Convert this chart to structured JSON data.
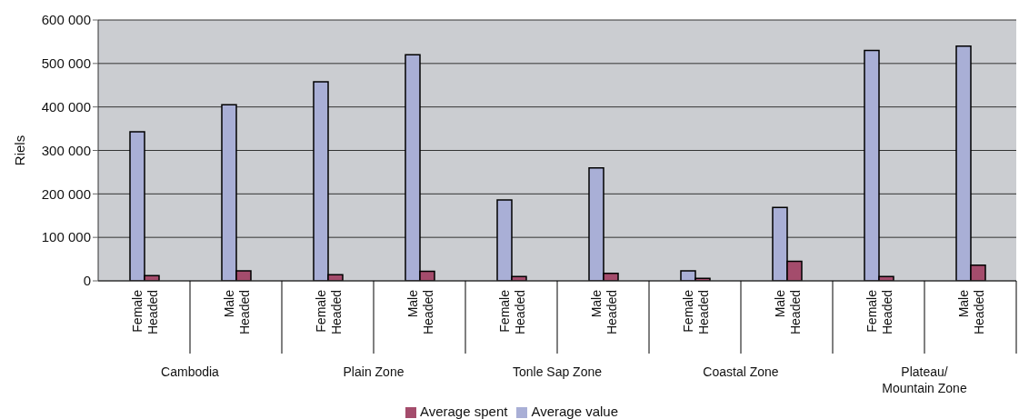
{
  "chart_data": {
    "type": "bar",
    "ylabel": "Riels",
    "categories": [
      "Female Headed",
      "Male Headed",
      "Female Headed",
      "Male Headed",
      "Female Headed",
      "Male Headed",
      "Female Headed",
      "Male Headed",
      "Female Headed",
      "Male Headed"
    ],
    "series": [
      {
        "name": "Average value",
        "color": "#a9afd6",
        "values": [
          343000,
          405000,
          458000,
          520000,
          186000,
          260000,
          23000,
          169000,
          530000,
          540000
        ]
      },
      {
        "name": "Average spent",
        "color": "#a44c6c",
        "values": [
          12000,
          23000,
          14000,
          22000,
          10000,
          17000,
          6000,
          45000,
          10000,
          36000
        ]
      }
    ],
    "annotations": [
      "Cambodia",
      "Plain Zone",
      "Tonle Sap Zone",
      "Coastal Zone",
      "Plateau/ Mountain Zone"
    ],
    "ylim": [
      0,
      600000
    ],
    "yticks": [
      0,
      100000,
      200000,
      300000,
      400000,
      500000,
      600000
    ],
    "grid": "y",
    "legend": "bottom"
  }
}
